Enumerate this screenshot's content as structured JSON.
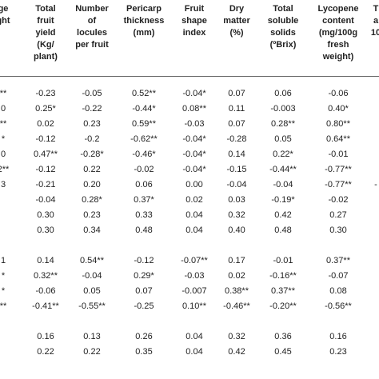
{
  "table": {
    "headers": [
      [
        "ge",
        "ght"
      ],
      [
        "Total",
        "fruit",
        "yield",
        "(Kg/",
        "plant)"
      ],
      [
        "Number",
        "of",
        "locules",
        "per fruit"
      ],
      [
        "Pericarp",
        "thickness",
        "(mm)"
      ],
      [
        "Fruit",
        "shape",
        "index"
      ],
      [
        "Dry",
        "matter",
        "(%)"
      ],
      [
        "Total",
        "soluble",
        "solids",
        "(ºBrix)"
      ],
      [
        "Lycopene",
        "content",
        "(mg/100g",
        "fresh",
        "weight)"
      ],
      [
        "T",
        "a",
        "10"
      ]
    ],
    "rows": [
      [
        "**",
        "-0.23",
        "-0.05",
        "0.52**",
        "-0.04*",
        "0.07",
        "0.06",
        "-0.06",
        ""
      ],
      [
        "0",
        "0.25*",
        "-0.22",
        "-0.44*",
        "0.08**",
        "0.11",
        "-0.003",
        "0.40*",
        ""
      ],
      [
        "**",
        "0.02",
        "0.23",
        "0.59**",
        "-0.03",
        "0.07",
        "0.28**",
        "0.80**",
        ""
      ],
      [
        "*",
        "-0.12",
        "-0.2",
        "-0.62**",
        "-0.04*",
        "-0.28",
        "0.05",
        "0.64**",
        ""
      ],
      [
        "0",
        "0.47**",
        "-0.28*",
        "-0.46*",
        "-0.04*",
        "0.14",
        "0.22*",
        "-0.01",
        ""
      ],
      [
        "2**",
        "-0.12",
        "0.22",
        "-0.02",
        "-0.04*",
        "-0.15",
        "-0.44**",
        "-0.77**",
        ""
      ],
      [
        "3",
        "-0.21",
        "0.20",
        "0.06",
        "0.00",
        "-0.04",
        "-0.04",
        "-0.77**",
        "-"
      ],
      [
        "",
        "-0.04",
        "0.28*",
        "0.37*",
        "0.02",
        "0.03",
        "-0.19*",
        "-0.02",
        ""
      ],
      [
        "",
        "0.30",
        "0.23",
        "0.33",
        "0.04",
        "0.32",
        "0.42",
        "0.27",
        ""
      ],
      [
        "",
        "0.30",
        "0.34",
        "0.48",
        "0.04",
        "0.40",
        "0.48",
        "0.30",
        ""
      ],
      [
        "",
        "",
        "",
        "",
        "",
        "",
        "",
        "",
        ""
      ],
      [
        "1",
        "0.14",
        "0.54**",
        "-0.12",
        "-0.07**",
        "0.17",
        "-0.01",
        "0.37**",
        ""
      ],
      [
        "*",
        "0.32**",
        "-0.04",
        "0.29*",
        "-0.03",
        "0.02",
        "-0.16**",
        "-0.07",
        ""
      ],
      [
        "*",
        "-0.06",
        "0.05",
        "0.07",
        "-0.007",
        "0.38**",
        "0.37**",
        "0.08",
        ""
      ],
      [
        "**",
        "-0.41**",
        "-0.55**",
        "-0.25",
        "0.10**",
        "-0.46**",
        "-0.20**",
        "-0.56**",
        ""
      ],
      [
        "",
        "",
        "",
        "",
        "",
        "",
        "",
        "",
        ""
      ],
      [
        "",
        "0.16",
        "0.13",
        "0.26",
        "0.04",
        "0.32",
        "0.36",
        "0.16",
        ""
      ],
      [
        "",
        "0.22",
        "0.22",
        "0.35",
        "0.04",
        "0.42",
        "0.45",
        "0.23",
        ""
      ]
    ]
  }
}
